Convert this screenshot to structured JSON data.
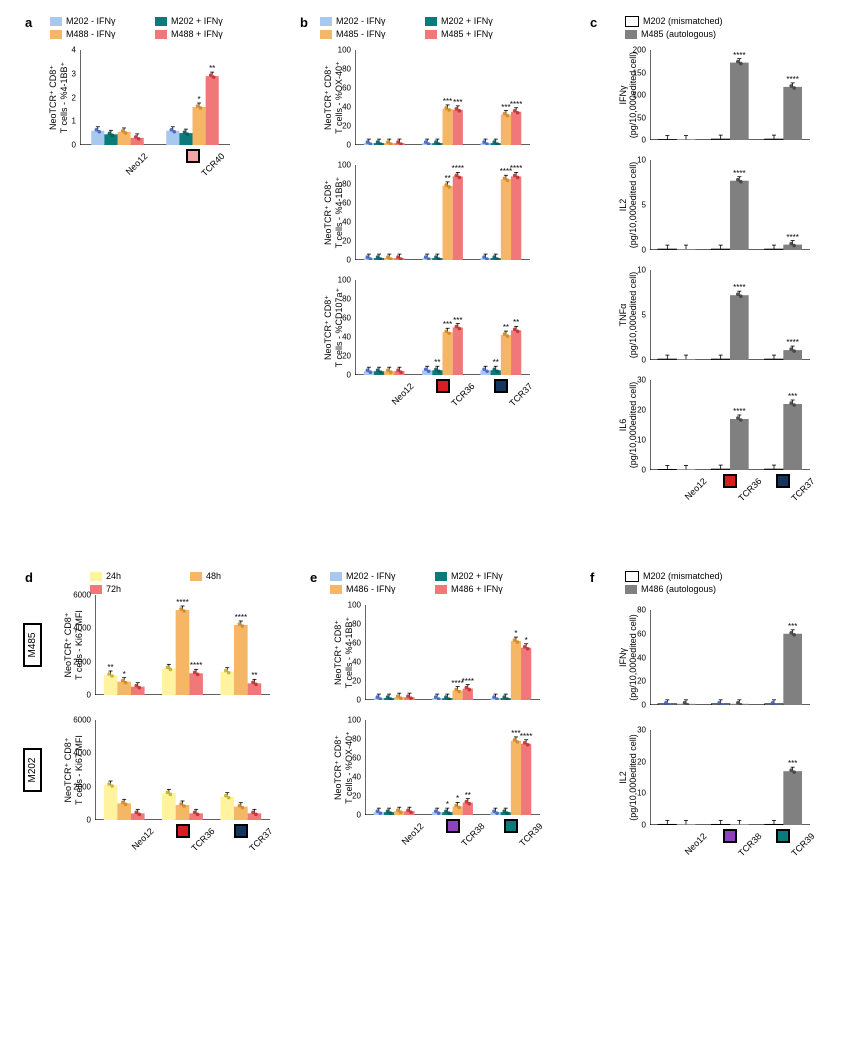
{
  "colors": {
    "lightblue": "#a8c8f0",
    "teal": "#0a7a7a",
    "orange": "#f5b666",
    "pink": "#f07878",
    "yellow": "#fff3a0",
    "peach": "#f5b666",
    "salmon": "#f07878",
    "red_strong": "#d81e1e",
    "navy": "#14365e",
    "purple": "#9040c0",
    "teal_dark": "#0a7a7a",
    "white": "#ffffff",
    "gray": "#808080",
    "dot_blue": "#4060c0",
    "dot_teal": "#0a5a5a",
    "dot_orange": "#d08820",
    "dot_red": "#c03030",
    "black": "#000000"
  },
  "panel_a": {
    "label": "a",
    "legend": [
      {
        "color": "#a8c8f0",
        "text": "M202 - IFNγ"
      },
      {
        "color": "#0a7a7a",
        "text": "M202 + IFNγ"
      },
      {
        "color": "#f5b666",
        "text": "M488 - IFNγ"
      },
      {
        "color": "#f07878",
        "text": "M488 + IFNγ"
      }
    ],
    "ylabel": "NeoTCR⁺ CD8⁺\nT cells - %4-1BB⁺",
    "ymax": 4,
    "yticks": [
      0,
      1,
      2,
      3,
      4
    ],
    "categories": [
      "Neo12",
      "TCR40"
    ],
    "series": [
      {
        "color": "#a8c8f0",
        "values": [
          0.6,
          0.6
        ]
      },
      {
        "color": "#0a7a7a",
        "values": [
          0.45,
          0.5
        ]
      },
      {
        "color": "#f5b666",
        "values": [
          0.55,
          1.6
        ]
      },
      {
        "color": "#f07878",
        "values": [
          0.3,
          2.9
        ]
      }
    ],
    "sig": {
      "TCR40": [
        "",
        "",
        "*",
        "**"
      ]
    },
    "marker": {
      "cat": "TCR40",
      "color": "#f5a5a5"
    }
  },
  "panel_b": {
    "label": "b",
    "legend": [
      {
        "color": "#a8c8f0",
        "text": "M202 - IFNγ"
      },
      {
        "color": "#0a7a7a",
        "text": "M202 + IFNγ"
      },
      {
        "color": "#f5b666",
        "text": "M485 - IFNγ"
      },
      {
        "color": "#f07878",
        "text": "M485 + IFNγ"
      }
    ],
    "categories": [
      "Neo12",
      "TCR36",
      "TCR37"
    ],
    "markers": [
      {
        "cat": "TCR36",
        "color": "#d81e1e"
      },
      {
        "cat": "TCR37",
        "color": "#14365e"
      }
    ],
    "charts": [
      {
        "ylabel": "NeoTCR⁺ CD8⁺\nT cells - %OX-40⁺",
        "ymax": 100,
        "yticks": [
          0,
          20,
          40,
          60,
          80,
          100
        ],
        "series": [
          {
            "color": "#a8c8f0",
            "values": [
              2,
              2,
              2
            ]
          },
          {
            "color": "#0a7a7a",
            "values": [
              2,
              2,
              2
            ]
          },
          {
            "color": "#f5b666",
            "values": [
              2,
              38,
              32
            ]
          },
          {
            "color": "#f07878",
            "values": [
              2,
              37,
              35
            ]
          }
        ],
        "sig": {
          "TCR36": [
            "",
            "",
            "***",
            "***"
          ],
          "TCR37": [
            "",
            "",
            "***",
            "****"
          ]
        }
      },
      {
        "ylabel": "NeoTCR⁺ CD8⁺\nT cells - %4-1BB⁺",
        "ymax": 100,
        "yticks": [
          0,
          20,
          40,
          60,
          80,
          100
        ],
        "series": [
          {
            "color": "#a8c8f0",
            "values": [
              2,
              2,
              2
            ]
          },
          {
            "color": "#0a7a7a",
            "values": [
              2,
              2,
              2
            ]
          },
          {
            "color": "#f5b666",
            "values": [
              2,
              78,
              85
            ]
          },
          {
            "color": "#f07878",
            "values": [
              2,
              88,
              88
            ]
          }
        ],
        "sig": {
          "TCR36": [
            "",
            "",
            "**",
            "****"
          ],
          "TCR37": [
            "",
            "",
            "****",
            "****"
          ]
        }
      },
      {
        "ylabel": "NeoTCR⁺ CD8⁺\nT cells - %CD107a⁺",
        "ymax": 100,
        "yticks": [
          0,
          20,
          40,
          60,
          80,
          100
        ],
        "series": [
          {
            "color": "#a8c8f0",
            "values": [
              4,
              5,
              5
            ]
          },
          {
            "color": "#0a7a7a",
            "values": [
              4,
              5,
              5
            ]
          },
          {
            "color": "#f5b666",
            "values": [
              4,
              45,
              42
            ]
          },
          {
            "color": "#f07878",
            "values": [
              4,
              50,
              47
            ]
          }
        ],
        "sig": {
          "TCR36": [
            "",
            "**",
            "***",
            "***"
          ],
          "TCR37": [
            "",
            "**",
            "**",
            "**"
          ]
        }
      }
    ]
  },
  "panel_c": {
    "label": "c",
    "legend": [
      {
        "color": "#ffffff",
        "text": "M202 (mismatched)",
        "border": true
      },
      {
        "color": "#808080",
        "text": "M485 (autologous)"
      }
    ],
    "categories": [
      "Neo12",
      "TCR36",
      "TCR37"
    ],
    "markers": [
      {
        "cat": "TCR36",
        "color": "#d81e1e"
      },
      {
        "cat": "TCR37",
        "color": "#14365e"
      }
    ],
    "charts": [
      {
        "ylabel": "IFNγ\n(pg/10,000edited cell)",
        "ymax": 200,
        "yticks": [
          0,
          50,
          100,
          150,
          200
        ],
        "series": [
          {
            "color": "#ffffff",
            "values": [
              1,
              2,
              2
            ]
          },
          {
            "color": "#808080",
            "values": [
              1,
              172,
              118
            ]
          }
        ],
        "sig": {
          "TCR36": [
            "",
            "****"
          ],
          "TCR37": [
            "",
            "****"
          ]
        }
      },
      {
        "ylabel": "IL2\n(pg/10,000edited cell)",
        "ymax": 10,
        "yticks": [
          0,
          5,
          10
        ],
        "series": [
          {
            "color": "#ffffff",
            "values": [
              0.1,
              0.1,
              0.1
            ]
          },
          {
            "color": "#808080",
            "values": [
              0.1,
              7.7,
              0.6
            ]
          }
        ],
        "sig": {
          "TCR36": [
            "",
            "****"
          ],
          "TCR37": [
            "",
            "****"
          ]
        }
      },
      {
        "ylabel": "TNFα\n(pg/10,000edited cell)",
        "ymax": 10,
        "yticks": [
          0,
          5,
          10
        ],
        "series": [
          {
            "color": "#ffffff",
            "values": [
              0.1,
              0.1,
              0.1
            ]
          },
          {
            "color": "#808080",
            "values": [
              0.1,
              7.2,
              1.1
            ]
          }
        ],
        "sig": {
          "TCR36": [
            "",
            "****"
          ],
          "TCR37": [
            "",
            "****"
          ]
        }
      },
      {
        "ylabel": "IL6\n(pg/10,000edited cell)",
        "ymax": 30,
        "yticks": [
          0,
          10,
          20,
          30
        ],
        "series": [
          {
            "color": "#ffffff",
            "values": [
              0.2,
              0.3,
              0.3
            ]
          },
          {
            "color": "#808080",
            "values": [
              0.2,
              17,
              22
            ]
          }
        ],
        "sig": {
          "TCR36": [
            "",
            "****"
          ],
          "TCR37": [
            "",
            "***"
          ]
        }
      }
    ]
  },
  "panel_d": {
    "label": "d",
    "legend": [
      {
        "color": "#fff3a0",
        "text": "24h"
      },
      {
        "color": "#f5b666",
        "text": "48h"
      },
      {
        "color": "#f07878",
        "text": "72h"
      }
    ],
    "categories": [
      "Neo12",
      "TCR36",
      "TCR37"
    ],
    "markers": [
      {
        "cat": "TCR36",
        "color": "#d81e1e"
      },
      {
        "cat": "TCR37",
        "color": "#14365e"
      }
    ],
    "charts": [
      {
        "side": "M485",
        "ylabel": "NeoTCR⁺ CD8⁺\nT cells - Ki67 MFI",
        "ymax": 6000,
        "yticks": [
          0,
          2000,
          4000,
          6000
        ],
        "series": [
          {
            "color": "#fff3a0",
            "values": [
              1200,
              1600,
              1400
            ]
          },
          {
            "color": "#f5b666",
            "values": [
              800,
              5100,
              4200
            ]
          },
          {
            "color": "#f07878",
            "values": [
              500,
              1300,
              700
            ]
          }
        ],
        "sig": {
          "Neo12": [
            "**",
            "*",
            ""
          ],
          "TCR36": [
            "",
            "****",
            "****"
          ],
          "TCR37": [
            "",
            "****",
            "**"
          ]
        }
      },
      {
        "side": "M202",
        "ylabel": "NeoTCR⁺ CD8⁺\nT cells - Ki67 MFI",
        "ymax": 6000,
        "yticks": [
          0,
          2000,
          4000,
          6000
        ],
        "series": [
          {
            "color": "#fff3a0",
            "values": [
              2100,
              1600,
              1400
            ]
          },
          {
            "color": "#f5b666",
            "values": [
              1000,
              900,
              800
            ]
          },
          {
            "color": "#f07878",
            "values": [
              400,
              400,
              400
            ]
          }
        ],
        "sig": {}
      }
    ]
  },
  "panel_e": {
    "label": "e",
    "legend": [
      {
        "color": "#a8c8f0",
        "text": "M202 - IFNγ"
      },
      {
        "color": "#0a7a7a",
        "text": "M202 + IFNγ"
      },
      {
        "color": "#f5b666",
        "text": "M486 - IFNγ"
      },
      {
        "color": "#f07878",
        "text": "M486 + IFNγ"
      }
    ],
    "categories": [
      "Neo12",
      "TCR38",
      "TCR39"
    ],
    "markers": [
      {
        "cat": "TCR38",
        "color": "#9040c0"
      },
      {
        "cat": "TCR39",
        "color": "#0a7a7a"
      }
    ],
    "charts": [
      {
        "ylabel": "NeoTCR⁺ CD8⁺\nT cells - %4-1BB⁺",
        "ymax": 100,
        "yticks": [
          0,
          20,
          40,
          60,
          80,
          100
        ],
        "series": [
          {
            "color": "#a8c8f0",
            "values": [
              2,
              2,
              2
            ]
          },
          {
            "color": "#0a7a7a",
            "values": [
              2,
              2,
              2
            ]
          },
          {
            "color": "#f5b666",
            "values": [
              3,
              10,
              62
            ]
          },
          {
            "color": "#f07878",
            "values": [
              3,
              12,
              55
            ]
          }
        ],
        "sig": {
          "TCR38": [
            "",
            "",
            "****",
            "****"
          ],
          "TCR39": [
            "",
            "",
            "*",
            "*"
          ]
        }
      },
      {
        "ylabel": "NeoTCR⁺ CD8⁺\nT cells - %OX-40⁺",
        "ymax": 100,
        "yticks": [
          0,
          20,
          40,
          60,
          80,
          100
        ],
        "series": [
          {
            "color": "#a8c8f0",
            "values": [
              3,
              3,
              3
            ]
          },
          {
            "color": "#0a7a7a",
            "values": [
              3,
              3,
              3
            ]
          },
          {
            "color": "#f5b666",
            "values": [
              4,
              9,
              78
            ]
          },
          {
            "color": "#f07878",
            "values": [
              4,
              13,
              75
            ]
          }
        ],
        "sig": {
          "TCR38": [
            "",
            "*",
            "*",
            "**"
          ],
          "TCR39": [
            "",
            "",
            "***",
            "****"
          ]
        }
      }
    ]
  },
  "panel_f": {
    "label": "f",
    "legend": [
      {
        "color": "#ffffff",
        "text": "M202 (mismatched)",
        "border": true
      },
      {
        "color": "#808080",
        "text": "M486 (autologous)"
      }
    ],
    "categories": [
      "Neo12",
      "TCR38",
      "TCR39"
    ],
    "markers": [
      {
        "cat": "TCR38",
        "color": "#9040c0"
      },
      {
        "cat": "TCR39",
        "color": "#0a7a7a"
      }
    ],
    "charts": [
      {
        "ylabel": "IFNγ\n(pg/10,000edited cell)",
        "ymax": 80,
        "yticks": [
          0,
          20,
          40,
          60,
          80
        ],
        "series": [
          {
            "color": "#ffffff",
            "values": [
              1,
              1,
              1
            ]
          },
          {
            "color": "#808080",
            "values": [
              1,
              1,
              60
            ]
          }
        ],
        "sig": {
          "TCR39": [
            "",
            "***"
          ]
        }
      },
      {
        "ylabel": "IL2\n(pg/10,000edited cell)",
        "ymax": 30,
        "yticks": [
          0,
          10,
          20,
          30
        ],
        "series": [
          {
            "color": "#ffffff",
            "values": [
              0.2,
              0.2,
              0.2
            ]
          },
          {
            "color": "#808080",
            "values": [
              0.2,
              0.2,
              17
            ]
          }
        ],
        "sig": {
          "TCR39": [
            "",
            "***"
          ]
        }
      }
    ]
  }
}
